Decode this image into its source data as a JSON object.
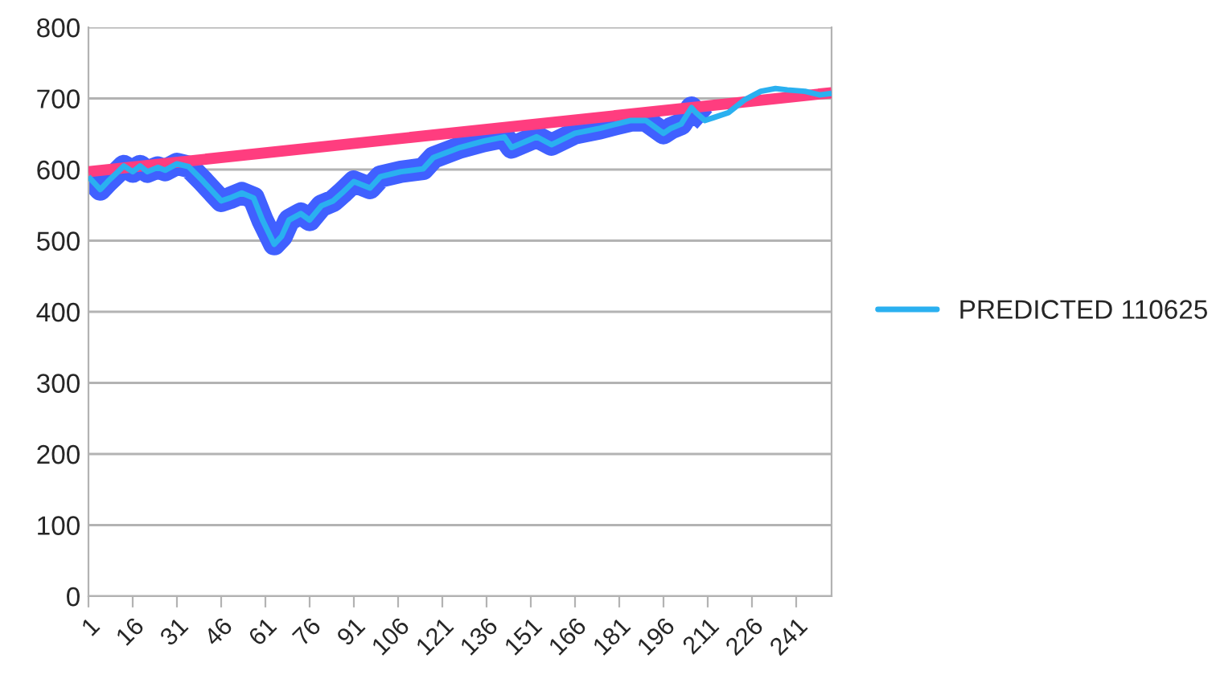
{
  "chart_data": {
    "type": "line",
    "xlim": [
      1,
      253
    ],
    "xticks": [
      1,
      16,
      31,
      46,
      61,
      76,
      91,
      106,
      121,
      136,
      151,
      166,
      181,
      196,
      211,
      226,
      241
    ],
    "ylim": [
      0,
      800
    ],
    "yticks": [
      0,
      100,
      200,
      300,
      400,
      500,
      600,
      700,
      800
    ],
    "grid": "y",
    "legend": "right",
    "marker": "none",
    "line_style": "solid",
    "series": [
      {
        "color": "#4060ff",
        "x": [
          1,
          5,
          7.5,
          11,
          13,
          16,
          18.5,
          21,
          24.5,
          27,
          31,
          35,
          40,
          46,
          49,
          53,
          57,
          60,
          64,
          66.5,
          69,
          73,
          76,
          80,
          84,
          87,
          91,
          96.5,
          100,
          107,
          114.5,
          118,
          127,
          135,
          142,
          144.5,
          153,
          158,
          166,
          174.5,
          180,
          185,
          190,
          196,
          198.5,
          202,
          205.5,
          207,
          210
        ],
        "values": [
          590,
          572,
          583,
          597,
          605,
          597,
          605,
          597,
          603,
          599,
          608,
          604,
          583,
          556,
          560,
          567,
          560,
          529,
          495,
          506,
          529,
          538,
          529,
          549,
          556,
          567,
          583,
          574,
          590,
          597,
          601,
          617,
          631,
          640,
          646,
          631,
          646,
          635,
          651,
          658,
          664,
          669,
          669,
          651,
          658,
          664,
          687,
          680,
          669
        ]
      },
      {
        "color": "#ff3d7f",
        "x": [
          1,
          253
        ],
        "values": [
          597,
          708
        ]
      },
      {
        "name": "PREDICTED 110625",
        "color": "#2ab0f0",
        "x": [
          1,
          5,
          7.5,
          11,
          13,
          16,
          18.5,
          21,
          24.5,
          27,
          31,
          35,
          40,
          46,
          49,
          53,
          57,
          60,
          64,
          66.5,
          69,
          73,
          76,
          80,
          84,
          87,
          91,
          96.5,
          100,
          107,
          114.5,
          118,
          127,
          135,
          142,
          144.5,
          153,
          158,
          166,
          174.5,
          180,
          185,
          190,
          196,
          198.5,
          202,
          205.5,
          207,
          210,
          213,
          218,
          223.5,
          229,
          234,
          238,
          244,
          249,
          253
        ],
        "values": [
          590,
          572,
          583,
          597,
          605,
          597,
          605,
          597,
          603,
          599,
          608,
          604,
          583,
          556,
          560,
          567,
          560,
          529,
          495,
          506,
          529,
          538,
          529,
          549,
          556,
          567,
          583,
          574,
          590,
          597,
          601,
          617,
          631,
          640,
          646,
          631,
          646,
          635,
          651,
          658,
          664,
          669,
          669,
          651,
          658,
          664,
          687,
          680,
          669,
          673,
          680,
          698,
          710,
          714,
          712,
          710,
          705,
          707
        ]
      }
    ]
  }
}
